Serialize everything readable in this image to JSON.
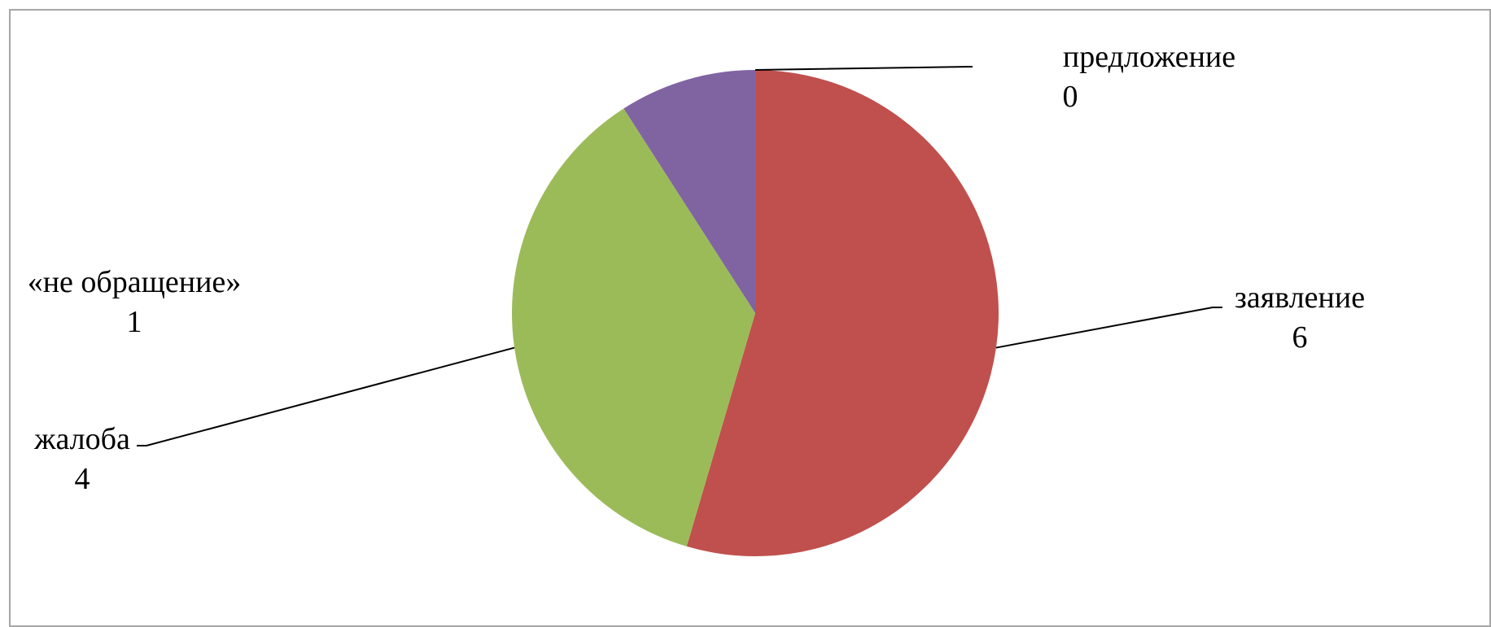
{
  "chart_data": {
    "type": "pie",
    "title": "",
    "categories": [
      "заявление",
      "жалоба",
      "«не обращение»",
      "предложение"
    ],
    "values": [
      6,
      4,
      1,
      0
    ],
    "colors": [
      "#C0504D",
      "#9BBB59",
      "#8064A2",
      "#4F81BD"
    ],
    "data_labels": [
      {
        "name": "заявление",
        "value": "6"
      },
      {
        "name": "жалоба",
        "value": "4"
      },
      {
        "name": "«не обращение»",
        "value": "1"
      },
      {
        "name": "предложение",
        "value": "0"
      }
    ],
    "legend": "none"
  }
}
